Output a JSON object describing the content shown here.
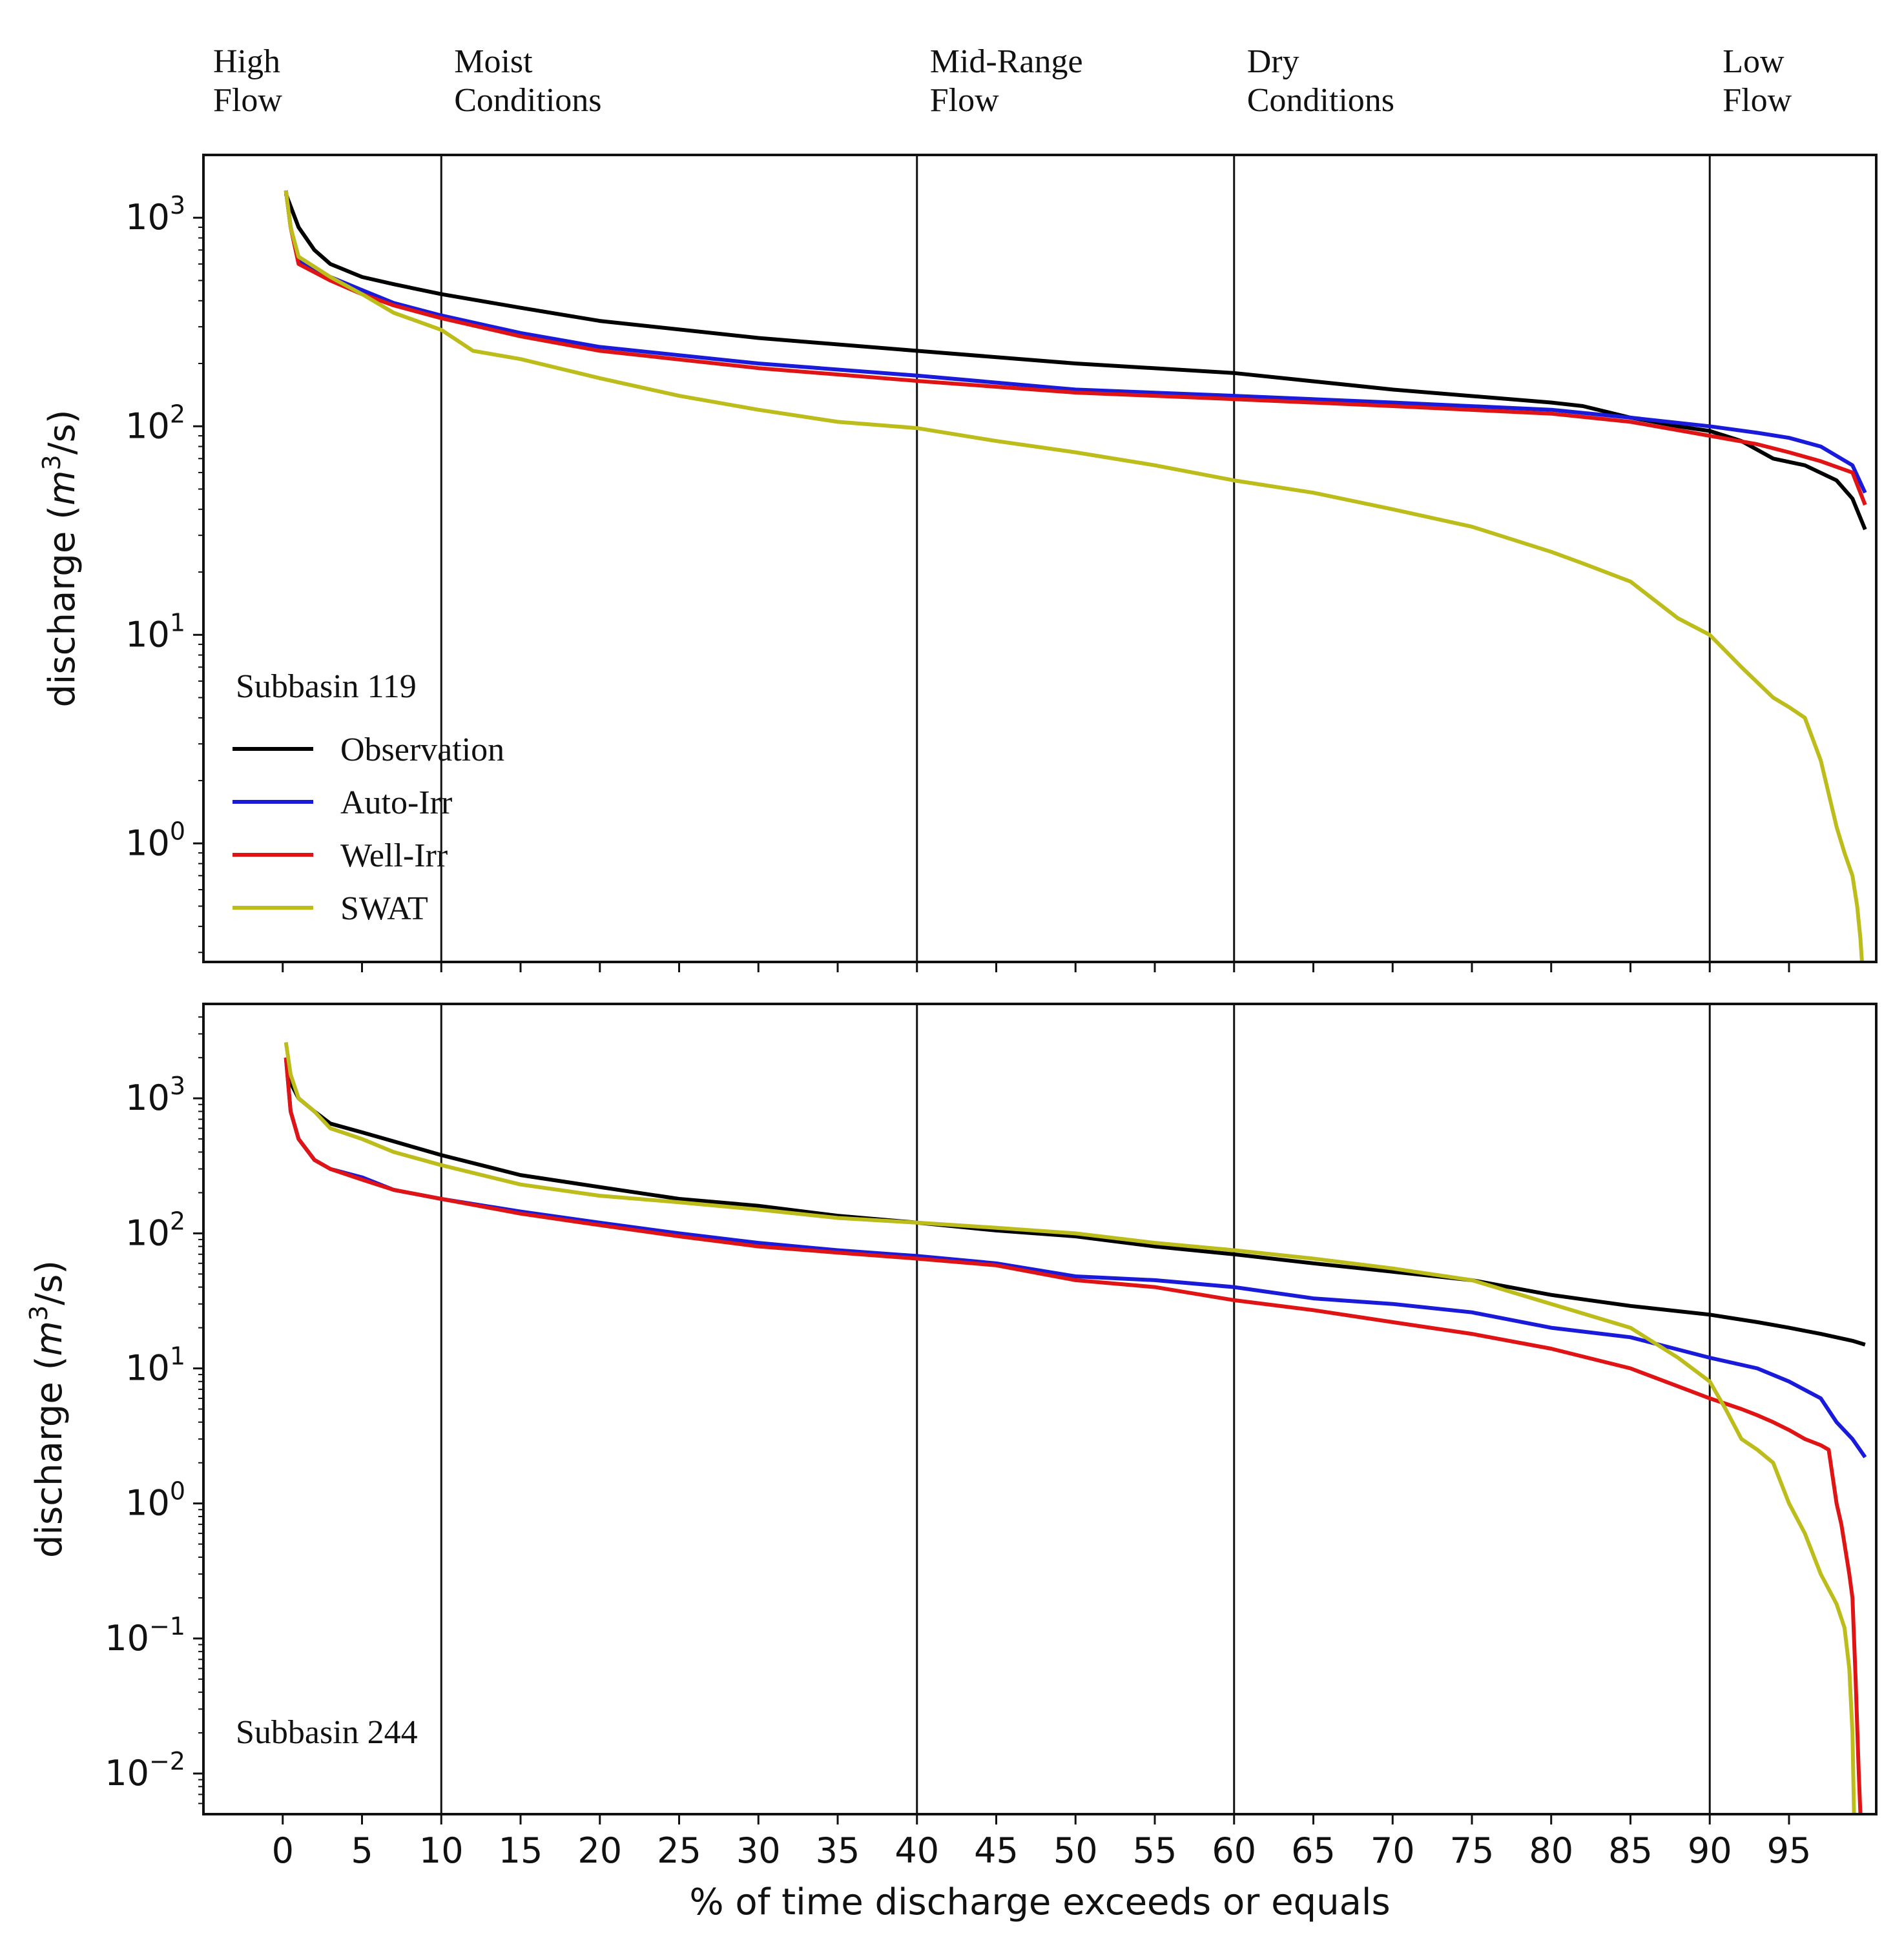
{
  "chart_data": {
    "type": "line",
    "y_scale": "log",
    "xlabel": "% of time discharge exceeds or equals",
    "x_ticks": [
      0,
      5,
      10,
      15,
      20,
      25,
      30,
      35,
      40,
      45,
      50,
      55,
      60,
      65,
      70,
      75,
      80,
      85,
      90,
      95
    ],
    "xlim": [
      -5,
      100.5
    ],
    "flow_zone_boundaries": [
      10,
      40,
      60,
      90
    ],
    "flow_zones": [
      {
        "x": 0,
        "line1": "High",
        "line2": "Flow"
      },
      {
        "x": 10,
        "line1": "Moist",
        "line2": "Conditions"
      },
      {
        "x": 40,
        "line1": "Mid-Range",
        "line2": "Flow"
      },
      {
        "x": 60,
        "line1": "Dry",
        "line2": "Conditions"
      },
      {
        "x": 90,
        "line1": "Low",
        "line2": "Flow"
      }
    ],
    "series_styles": [
      {
        "name": "Observation",
        "color": "#000000"
      },
      {
        "name": "Auto-Irr",
        "color": "#1a1adb"
      },
      {
        "name": "Well-Irr",
        "color": "#e01414"
      },
      {
        "name": "SWAT",
        "color": "#bcbc1a"
      }
    ],
    "panels": [
      {
        "label": "Subbasin 119",
        "ylabel_main": "discharge (",
        "ylabel_m": "m",
        "ylabel_sup": "3",
        "ylabel_tail": "/s)",
        "ylim": [
          0.27,
          2000
        ],
        "y_ticks": [
          {
            "value": 1,
            "base": "10",
            "exp": "0"
          },
          {
            "value": 10,
            "base": "10",
            "exp": "1"
          },
          {
            "value": 100,
            "base": "10",
            "exp": "2"
          },
          {
            "value": 1000,
            "base": "10",
            "exp": "3"
          }
        ],
        "show_legend": true,
        "series": [
          {
            "name": "Observation",
            "x": [
              0.2,
              1,
              2,
              3,
              5,
              7,
              10,
              15,
              20,
              30,
              40,
              50,
              60,
              70,
              80,
              82,
              85,
              88,
              90,
              92,
              94,
              96,
              98,
              99,
              99.8
            ],
            "values": [
              1300,
              900,
              700,
              600,
              520,
              480,
              430,
              370,
              320,
              265,
              230,
              200,
              180,
              150,
              130,
              125,
              110,
              100,
              95,
              85,
              70,
              65,
              55,
              45,
              32
            ]
          },
          {
            "name": "Auto-Irr",
            "x": [
              0.2,
              0.5,
              1,
              3,
              5,
              7,
              10,
              15,
              20,
              30,
              40,
              50,
              60,
              70,
              80,
              85,
              90,
              93,
              95,
              97,
              99,
              99.8
            ],
            "values": [
              1350,
              900,
              620,
              520,
              450,
              390,
              340,
              280,
              240,
              200,
              175,
              150,
              140,
              130,
              120,
              110,
              100,
              93,
              88,
              80,
              65,
              48
            ]
          },
          {
            "name": "Well-Irr",
            "x": [
              0.2,
              0.5,
              1,
              3,
              5,
              7,
              10,
              15,
              20,
              30,
              40,
              50,
              60,
              70,
              80,
              85,
              90,
              93,
              95,
              97,
              99,
              99.8
            ],
            "values": [
              1350,
              900,
              600,
              500,
              430,
              380,
              330,
              270,
              230,
              190,
              165,
              145,
              135,
              125,
              115,
              105,
              90,
              82,
              75,
              68,
              60,
              42
            ]
          },
          {
            "name": "SWAT",
            "x": [
              0.2,
              0.5,
              1,
              3,
              5,
              7,
              10,
              12,
              15,
              20,
              25,
              30,
              35,
              40,
              45,
              50,
              55,
              60,
              65,
              70,
              75,
              80,
              82,
              85,
              88,
              90,
              92,
              94,
              95,
              96,
              97,
              98,
              98.5,
              99,
              99.3,
              99.5,
              99.6
            ],
            "values": [
              1350,
              900,
              650,
              520,
              430,
              350,
              290,
              230,
              210,
              170,
              140,
              120,
              105,
              98,
              85,
              75,
              65,
              55,
              48,
              40,
              33,
              25,
              22,
              18,
              12,
              10,
              7,
              5,
              4.5,
              4,
              2.5,
              1.2,
              0.9,
              0.7,
              0.5,
              0.35,
              0.27
            ]
          }
        ]
      },
      {
        "label": "Subbasin 244",
        "ylabel_main": "discharge (",
        "ylabel_m": "m",
        "ylabel_sup": "3",
        "ylabel_tail": "/s)",
        "ylim": [
          0.005,
          5000
        ],
        "y_ticks": [
          {
            "value": 0.01,
            "base": "10",
            "exp": "−2"
          },
          {
            "value": 0.1,
            "base": "10",
            "exp": "−1"
          },
          {
            "value": 1,
            "base": "10",
            "exp": "0"
          },
          {
            "value": 10,
            "base": "10",
            "exp": "1"
          },
          {
            "value": 100,
            "base": "10",
            "exp": "2"
          },
          {
            "value": 1000,
            "base": "10",
            "exp": "3"
          }
        ],
        "show_legend": false,
        "series": [
          {
            "name": "Observation",
            "x": [
              0.2,
              0.5,
              1,
              2,
              3,
              5,
              7,
              10,
              15,
              20,
              25,
              30,
              35,
              40,
              45,
              50,
              55,
              60,
              65,
              70,
              75,
              80,
              85,
              90,
              93,
              95,
              97,
              99,
              99.8
            ],
            "values": [
              2000,
              1300,
              1000,
              800,
              650,
              560,
              480,
              380,
              270,
              220,
              180,
              160,
              135,
              120,
              105,
              95,
              80,
              70,
              60,
              52,
              45,
              35,
              29,
              25,
              22,
              20,
              18,
              16,
              15
            ]
          },
          {
            "name": "Auto-Irr",
            "x": [
              0.2,
              0.5,
              1,
              2,
              3,
              5,
              7,
              10,
              15,
              20,
              25,
              30,
              35,
              40,
              45,
              50,
              55,
              60,
              65,
              70,
              75,
              80,
              85,
              90,
              93,
              95,
              97,
              98,
              99,
              99.8
            ],
            "values": [
              2000,
              800,
              500,
              350,
              300,
              260,
              210,
              180,
              145,
              120,
              100,
              85,
              75,
              68,
              60,
              48,
              45,
              40,
              33,
              30,
              26,
              20,
              17,
              12,
              10,
              8,
              6,
              4,
              3,
              2.2
            ]
          },
          {
            "name": "Well-Irr",
            "x": [
              0.2,
              0.5,
              1,
              2,
              3,
              5,
              7,
              10,
              15,
              20,
              25,
              30,
              35,
              40,
              45,
              50,
              55,
              60,
              65,
              70,
              75,
              80,
              85,
              90,
              92,
              93,
              94,
              95,
              96,
              97,
              97.5,
              98,
              98.3,
              98.5,
              98.8,
              99,
              99.2,
              99.4,
              99.5
            ],
            "values": [
              2000,
              800,
              500,
              350,
              300,
              250,
              210,
              180,
              140,
              115,
              95,
              80,
              72,
              65,
              58,
              45,
              40,
              32,
              27,
              22,
              18,
              14,
              10,
              6,
              5,
              4.5,
              4,
              3.5,
              3,
              2.7,
              2.5,
              1,
              0.7,
              0.5,
              0.3,
              0.2,
              0.05,
              0.01,
              0.005
            ]
          },
          {
            "name": "SWAT",
            "x": [
              0.2,
              0.5,
              1,
              2,
              3,
              5,
              7,
              10,
              15,
              20,
              25,
              30,
              35,
              40,
              45,
              50,
              55,
              60,
              65,
              70,
              75,
              80,
              85,
              88,
              90,
              91,
              92,
              93,
              94,
              95,
              96,
              97,
              98,
              98.5,
              98.8,
              99,
              99.1
            ],
            "values": [
              2600,
              1500,
              1000,
              800,
              600,
              500,
              400,
              320,
              230,
              190,
              170,
              150,
              130,
              120,
              110,
              100,
              85,
              75,
              65,
              55,
              45,
              30,
              20,
              12,
              8,
              5,
              3,
              2.5,
              2,
              1,
              0.6,
              0.3,
              0.18,
              0.12,
              0.06,
              0.02,
              0.005
            ]
          }
        ]
      }
    ],
    "legend_items": [
      "Observation",
      "Auto-Irr",
      "Well-Irr",
      "SWAT"
    ]
  }
}
